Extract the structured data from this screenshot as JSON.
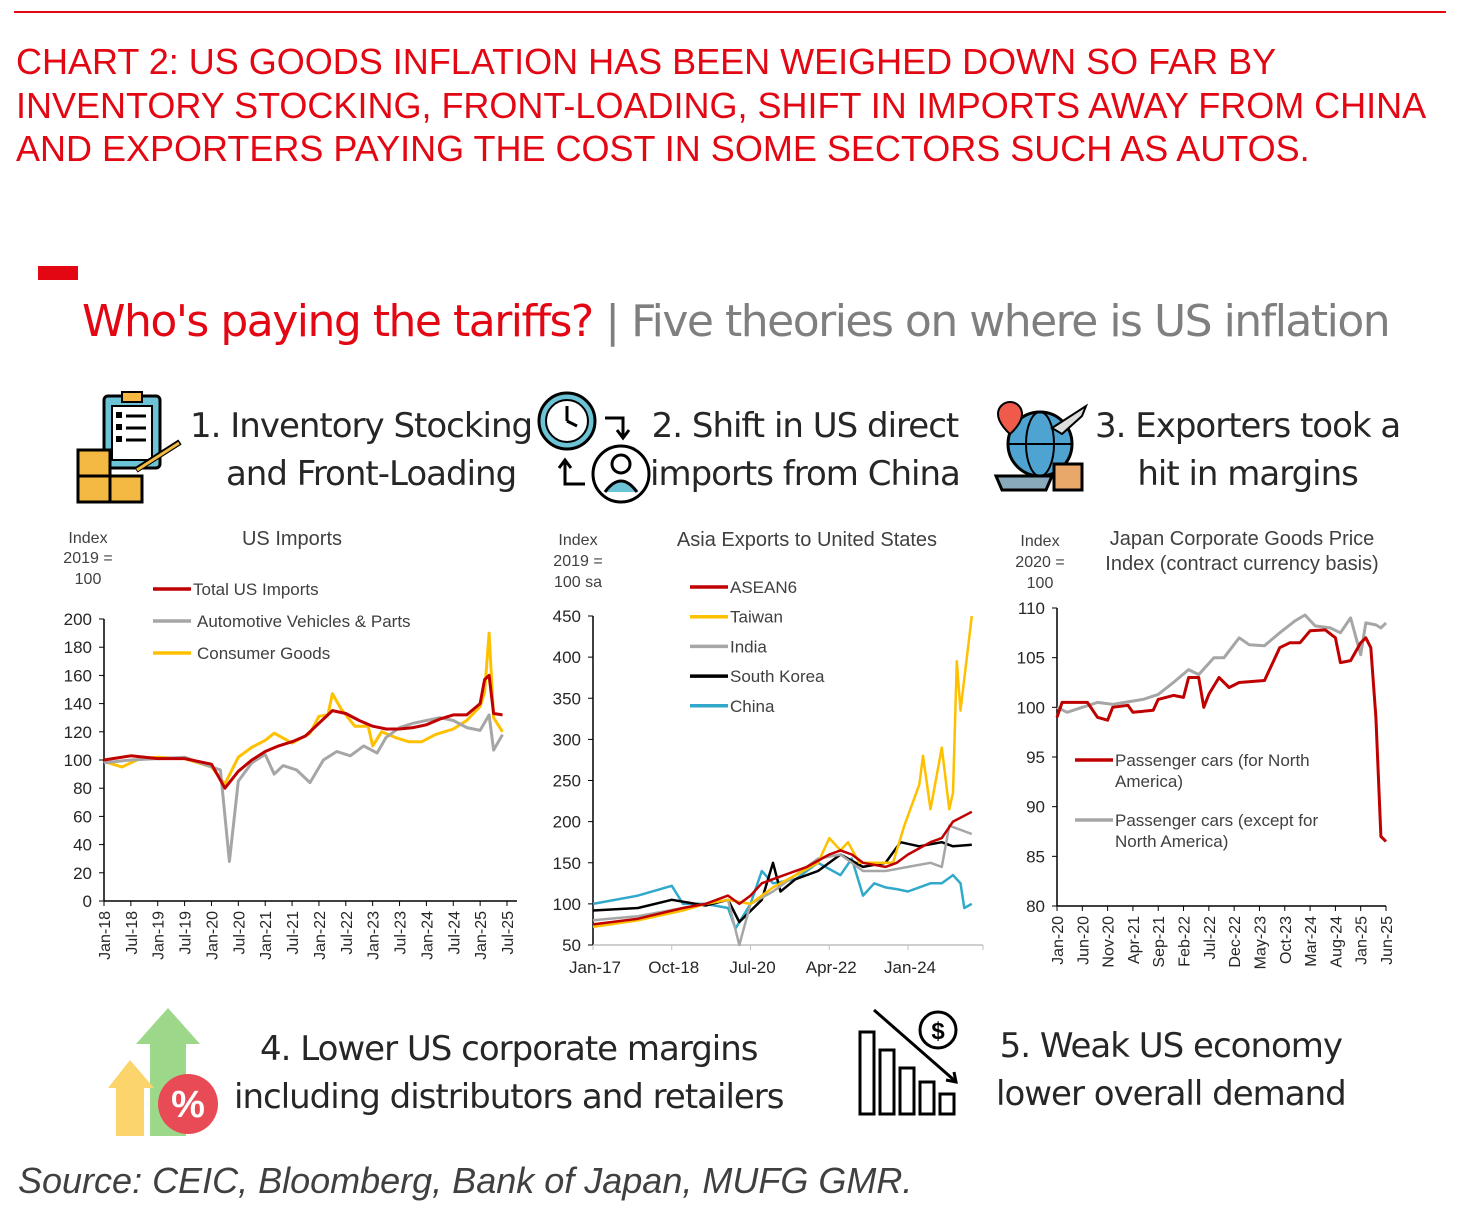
{
  "heading": "CHART 2: US GOODS INFLATION HAS BEEN WEIGHED DOWN SO FAR BY INVENTORY STOCKING, FRONT-LOADING, SHIFT IN IMPORTS AWAY FROM CHINA AND EXPORTERS PAYING THE COST IN SOME SECTORS SUCH AS AUTOS.",
  "subtitle": {
    "main": "Who's paying the tariffs?",
    "separator": " | ",
    "rest": "Five theories on where is US inflation"
  },
  "theories": [
    {
      "line1": "1. Inventory Stocking",
      "line2": "and Front-Loading",
      "icon": "clipboard-boxes-icon"
    },
    {
      "line1": "2. Shift in US direct",
      "line2": "imports from China",
      "icon": "clock-user-icon"
    },
    {
      "line1": "3. Exporters took a",
      "line2": "hit in margins",
      "icon": "globe-shipping-icon"
    },
    {
      "line1": "4. Lower US corporate margins",
      "line2": "including distributors and retailers",
      "icon": "percent-arrows-icon"
    },
    {
      "line1": "5. Weak US economy",
      "line2": "lower overall demand",
      "icon": "declining-bars-dollar-icon"
    }
  ],
  "source": "Source: CEIC, Bloomberg, Bank of Japan, MUFG GMR.",
  "chart_data": [
    {
      "type": "line",
      "title": "US Imports",
      "ylabel": "Index 2019 = 100",
      "ylabel_lines": [
        "Index",
        "2019 =",
        "100"
      ],
      "ylim": [
        0,
        200
      ],
      "yticks": [
        0,
        20,
        40,
        60,
        80,
        100,
        120,
        140,
        160,
        180,
        200
      ],
      "xlim": [
        "2018-01",
        "2025-07"
      ],
      "xticks": [
        "Jan-18",
        "Jul-18",
        "Jan-19",
        "Jul-19",
        "Jan-20",
        "Jul-20",
        "Jan-21",
        "Jul-21",
        "Jan-22",
        "Jul-22",
        "Jan-23",
        "Jul-23",
        "Jan-24",
        "Jul-24",
        "Jan-25",
        "Jul-25"
      ],
      "legend": "top-left",
      "grid": false,
      "series": [
        {
          "name": "Total US Imports",
          "color": "#c00000",
          "x": [
            "2018-01",
            "2018-07",
            "2019-01",
            "2019-07",
            "2020-01",
            "2020-04",
            "2020-07",
            "2020-10",
            "2021-01",
            "2021-04",
            "2021-07",
            "2021-10",
            "2022-01",
            "2022-04",
            "2022-07",
            "2022-10",
            "2023-01",
            "2023-04",
            "2023-07",
            "2023-10",
            "2024-01",
            "2024-04",
            "2024-07",
            "2024-10",
            "2025-01",
            "2025-02",
            "2025-03",
            "2025-04",
            "2025-06"
          ],
          "y": [
            100,
            103,
            101,
            101,
            97,
            80,
            92,
            100,
            106,
            110,
            113,
            117,
            126,
            135,
            133,
            128,
            124,
            122,
            122,
            123,
            125,
            129,
            132,
            132,
            140,
            157,
            160,
            133,
            132
          ]
        },
        {
          "name": "Automotive Vehicles & Parts",
          "color": "#a6a6a6",
          "x": [
            "2018-01",
            "2018-07",
            "2019-01",
            "2019-07",
            "2020-01",
            "2020-03",
            "2020-05",
            "2020-07",
            "2020-10",
            "2021-01",
            "2021-03",
            "2021-05",
            "2021-08",
            "2021-11",
            "2022-02",
            "2022-05",
            "2022-08",
            "2022-11",
            "2023-02",
            "2023-04",
            "2023-07",
            "2023-10",
            "2024-01",
            "2024-04",
            "2024-07",
            "2024-10",
            "2025-01",
            "2025-03",
            "2025-04",
            "2025-06"
          ],
          "y": [
            98,
            100,
            101,
            102,
            95,
            93,
            28,
            85,
            98,
            104,
            90,
            96,
            93,
            84,
            100,
            106,
            103,
            110,
            105,
            116,
            123,
            126,
            128,
            130,
            128,
            123,
            121,
            132,
            107,
            118
          ]
        },
        {
          "name": "Consumer Goods",
          "color": "#ffc000",
          "x": [
            "2018-01",
            "2018-05",
            "2018-09",
            "2019-01",
            "2019-07",
            "2020-01",
            "2020-04",
            "2020-07",
            "2020-10",
            "2021-01",
            "2021-03",
            "2021-07",
            "2021-11",
            "2022-01",
            "2022-03",
            "2022-04",
            "2022-06",
            "2022-09",
            "2022-12",
            "2023-01",
            "2023-03",
            "2023-06",
            "2023-09",
            "2023-12",
            "2024-03",
            "2024-07",
            "2024-10",
            "2025-01",
            "2025-02",
            "2025-03",
            "2025-04",
            "2025-06"
          ],
          "y": [
            99,
            95,
            101,
            102,
            101,
            95,
            83,
            102,
            109,
            114,
            119,
            112,
            119,
            131,
            132,
            147,
            136,
            124,
            124,
            110,
            120,
            116,
            113,
            113,
            118,
            122,
            128,
            138,
            148,
            190,
            130,
            120
          ]
        }
      ]
    },
    {
      "type": "line",
      "title": "Asia Exports to United States",
      "ylabel": "Index 2019 = 100 sa",
      "ylabel_lines": [
        "Index",
        "2019 =",
        "100 sa"
      ],
      "ylim": [
        50,
        450
      ],
      "yticks": [
        50,
        100,
        150,
        200,
        250,
        300,
        350,
        400,
        450
      ],
      "xlim": [
        "2017-01",
        "2025-09"
      ],
      "xticks": [
        "Jan-17",
        "Oct-18",
        "Jul-20",
        "Apr-22",
        "Jan-24"
      ],
      "xtick_dates": [
        "2017-01",
        "2018-10",
        "2020-07",
        "2022-04",
        "2024-01"
      ],
      "legend": "top-center",
      "grid": false,
      "series": [
        {
          "name": "ASEAN6",
          "color": "#c00000",
          "x": [
            "2017-01",
            "2018-01",
            "2019-01",
            "2019-07",
            "2020-01",
            "2020-04",
            "2020-07",
            "2020-10",
            "2021-04",
            "2021-10",
            "2022-04",
            "2022-07",
            "2022-10",
            "2023-01",
            "2023-07",
            "2023-10",
            "2024-01",
            "2024-07",
            "2024-10",
            "2025-01",
            "2025-06"
          ],
          "y": [
            75,
            82,
            95,
            100,
            110,
            100,
            110,
            125,
            135,
            145,
            160,
            165,
            160,
            150,
            145,
            150,
            160,
            175,
            180,
            200,
            212
          ]
        },
        {
          "name": "Taiwan",
          "color": "#ffc000",
          "x": [
            "2017-01",
            "2018-01",
            "2019-01",
            "2019-07",
            "2020-01",
            "2020-07",
            "2021-01",
            "2021-07",
            "2022-01",
            "2022-04",
            "2022-07",
            "2022-09",
            "2022-12",
            "2023-06",
            "2023-09",
            "2023-12",
            "2024-04",
            "2024-05",
            "2024-07",
            "2024-10",
            "2024-12",
            "2025-01",
            "2025-02",
            "2025-03",
            "2025-06"
          ],
          "y": [
            72,
            80,
            92,
            100,
            105,
            100,
            120,
            135,
            150,
            180,
            165,
            175,
            150,
            150,
            150,
            195,
            245,
            280,
            215,
            290,
            215,
            235,
            395,
            335,
            450
          ]
        },
        {
          "name": "India",
          "color": "#a6a6a6",
          "x": [
            "2017-01",
            "2018-01",
            "2019-01",
            "2020-01",
            "2020-04",
            "2020-07",
            "2021-01",
            "2021-07",
            "2022-01",
            "2022-07",
            "2023-01",
            "2023-07",
            "2024-01",
            "2024-07",
            "2024-10",
            "2024-12",
            "2025-06"
          ],
          "y": [
            80,
            85,
            95,
            105,
            50,
            100,
            115,
            135,
            155,
            160,
            140,
            140,
            145,
            150,
            145,
            195,
            185
          ]
        },
        {
          "name": "South Korea",
          "color": "#000000",
          "x": [
            "2017-01",
            "2018-01",
            "2018-10",
            "2019-07",
            "2020-01",
            "2020-04",
            "2020-10",
            "2021-01",
            "2021-03",
            "2021-07",
            "2022-01",
            "2022-07",
            "2023-01",
            "2023-07",
            "2023-11",
            "2024-04",
            "2024-10",
            "2025-01",
            "2025-06"
          ],
          "y": [
            92,
            95,
            105,
            98,
            105,
            78,
            105,
            150,
            115,
            130,
            140,
            160,
            145,
            150,
            175,
            170,
            175,
            170,
            172
          ]
        },
        {
          "name": "China",
          "color": "#31a9cb",
          "x": [
            "2017-01",
            "2018-01",
            "2018-10",
            "2019-01",
            "2019-07",
            "2020-01",
            "2020-03",
            "2020-07",
            "2020-10",
            "2021-01",
            "2021-07",
            "2022-01",
            "2022-07",
            "2022-10",
            "2023-01",
            "2023-04",
            "2023-07",
            "2023-10",
            "2024-01",
            "2024-07",
            "2024-10",
            "2025-01",
            "2025-03",
            "2025-04",
            "2025-06"
          ],
          "y": [
            100,
            110,
            122,
            100,
            100,
            95,
            70,
            100,
            140,
            125,
            130,
            150,
            135,
            155,
            110,
            125,
            120,
            118,
            115,
            125,
            125,
            135,
            125,
            95,
            100
          ]
        }
      ]
    },
    {
      "type": "line",
      "title": "Japan Corporate Goods Price Index (contract currency basis)",
      "title_lines": [
        "Japan Corporate Goods Price",
        "Index (contract currency basis)"
      ],
      "ylabel": "Index 2020 = 100",
      "ylabel_lines": [
        "Index",
        "2020 =",
        "100"
      ],
      "ylim": [
        80,
        110
      ],
      "yticks": [
        80,
        85,
        90,
        95,
        100,
        105,
        110
      ],
      "xlim": [
        "2020-01",
        "2025-06"
      ],
      "xticks": [
        "Jan-20",
        "Jun-20",
        "Nov-20",
        "Apr-21",
        "Sep-21",
        "Feb-22",
        "Jul-22",
        "Dec-22",
        "May-23",
        "Oct-23",
        "Mar-24",
        "Aug-24",
        "Jan-25",
        "Jun-25"
      ],
      "legend": "center-left",
      "grid": false,
      "series": [
        {
          "name": "Passenger cars (for North America)",
          "name_lines": [
            "Passenger cars (for North",
            "America)"
          ],
          "color": "#c00000",
          "x": [
            "2020-01",
            "2020-02",
            "2020-07",
            "2020-09",
            "2020-11",
            "2020-12",
            "2021-03",
            "2021-04",
            "2021-08",
            "2021-09",
            "2021-12",
            "2022-02",
            "2022-03",
            "2022-05",
            "2022-06",
            "2022-07",
            "2022-09",
            "2022-11",
            "2023-01",
            "2023-06",
            "2023-09",
            "2023-11",
            "2024-01",
            "2024-03",
            "2024-06",
            "2024-08",
            "2024-09",
            "2024-11",
            "2025-01",
            "2025-02",
            "2025-03",
            "2025-04",
            "2025-05",
            "2025-06"
          ],
          "y": [
            99,
            100.5,
            100.5,
            99,
            98.7,
            100,
            100.2,
            99.5,
            99.7,
            100.8,
            101.2,
            101,
            103,
            103,
            100,
            101.3,
            103,
            102,
            102.5,
            102.7,
            106,
            106.5,
            106.5,
            107.7,
            107.8,
            107,
            104.5,
            104.7,
            106.5,
            107,
            106,
            99,
            87,
            86.5
          ]
        },
        {
          "name": "Passenger cars (except for North America)",
          "name_lines": [
            "Passenger cars (except for",
            "North America)"
          ],
          "color": "#a6a6a6",
          "x": [
            "2020-01",
            "2020-03",
            "2020-06",
            "2020-09",
            "2020-12",
            "2021-06",
            "2021-09",
            "2021-12",
            "2022-03",
            "2022-05",
            "2022-08",
            "2022-10",
            "2023-01",
            "2023-03",
            "2023-06",
            "2023-09",
            "2023-12",
            "2024-02",
            "2024-04",
            "2024-07",
            "2024-09",
            "2024-11",
            "2025-01",
            "2025-02",
            "2025-04",
            "2025-05",
            "2025-06"
          ],
          "y": [
            100,
            99.5,
            100,
            100.5,
            100.3,
            100.8,
            101.3,
            102.5,
            103.8,
            103.3,
            105,
            105,
            107,
            106.3,
            106.2,
            107.5,
            108.7,
            109.3,
            108.2,
            108,
            107.5,
            109,
            105.3,
            108.5,
            108.3,
            108,
            108.5
          ]
        }
      ]
    }
  ]
}
